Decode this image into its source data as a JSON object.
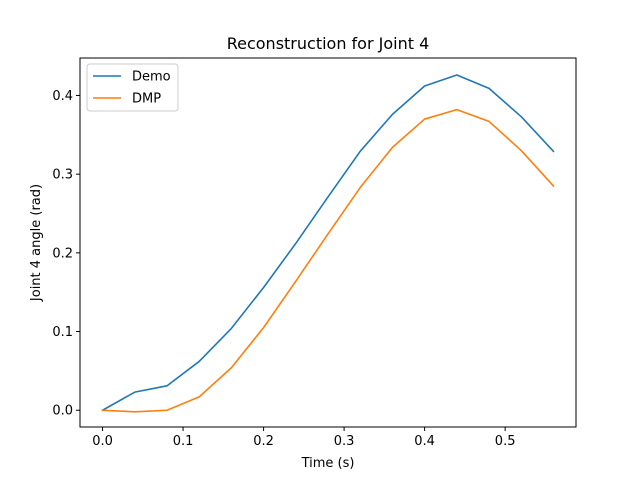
{
  "chart_data": {
    "type": "line",
    "title": "Reconstruction for Joint 4",
    "xlabel": "Time (s)",
    "ylabel": "Joint 4 angle (rad)",
    "xlim": [
      -0.028,
      0.588
    ],
    "ylim": [
      -0.0213,
      0.4476
    ],
    "x_ticks": [
      0.0,
      0.1,
      0.2,
      0.3,
      0.4,
      0.5
    ],
    "x_tick_labels": [
      "0.0",
      "0.1",
      "0.2",
      "0.3",
      "0.4",
      "0.5"
    ],
    "y_ticks": [
      0.0,
      0.1,
      0.2,
      0.3,
      0.4
    ],
    "y_tick_labels": [
      "0.0",
      "0.1",
      "0.2",
      "0.3",
      "0.4"
    ],
    "grid": false,
    "legend_position": "upper-left",
    "x": [
      0.0,
      0.04,
      0.08,
      0.12,
      0.16,
      0.2,
      0.24,
      0.28,
      0.32,
      0.36,
      0.4,
      0.44,
      0.48,
      0.52,
      0.56
    ],
    "series": [
      {
        "name": "Demo",
        "color": "#1f77b4",
        "values": [
          0.0,
          0.023,
          0.031,
          0.062,
          0.104,
          0.156,
          0.212,
          0.271,
          0.329,
          0.376,
          0.412,
          0.426,
          0.409,
          0.373,
          0.329
        ]
      },
      {
        "name": "DMP",
        "color": "#ff7f0e",
        "values": [
          0.0,
          -0.002,
          0.0,
          0.017,
          0.054,
          0.105,
          0.164,
          0.224,
          0.283,
          0.334,
          0.37,
          0.382,
          0.367,
          0.33,
          0.285
        ]
      }
    ]
  }
}
